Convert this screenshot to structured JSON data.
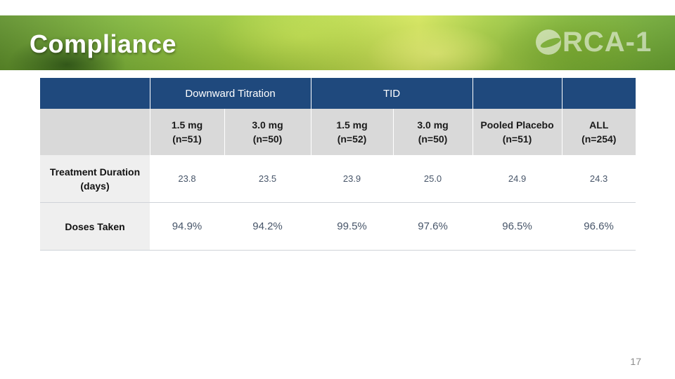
{
  "slide": {
    "title": "Compliance",
    "logo_text": "RCA-1",
    "page_number": "17"
  },
  "table": {
    "group_headers": [
      "",
      "Downward Titration",
      "TID",
      "",
      ""
    ],
    "columns": [
      {
        "dose": "1.5 mg",
        "n": "(n=51)"
      },
      {
        "dose": "3.0 mg",
        "n": "(n=50)"
      },
      {
        "dose": "1.5 mg",
        "n": "(n=52)"
      },
      {
        "dose": "3.0 mg",
        "n": "(n=50)"
      },
      {
        "dose": "Pooled Placebo",
        "n": "(n=51)"
      },
      {
        "dose": "ALL",
        "n": "(n=254)"
      }
    ],
    "rows": [
      {
        "label_line1": "Treatment Duration",
        "label_line2": "(days)",
        "values": [
          "23.8",
          "23.5",
          "23.9",
          "25.0",
          "24.9",
          "24.3"
        ]
      },
      {
        "label_line1": "Doses Taken",
        "label_line2": "",
        "values": [
          "94.9%",
          "94.2%",
          "99.5%",
          "97.6%",
          "96.5%",
          "96.6%"
        ]
      }
    ]
  },
  "colors": {
    "header_blue": "#1f497d",
    "subheader_gray": "#d9d9d9",
    "banner_green": "#8fc13e"
  },
  "icons": {
    "logo": "orca-leaf-logo-icon"
  }
}
